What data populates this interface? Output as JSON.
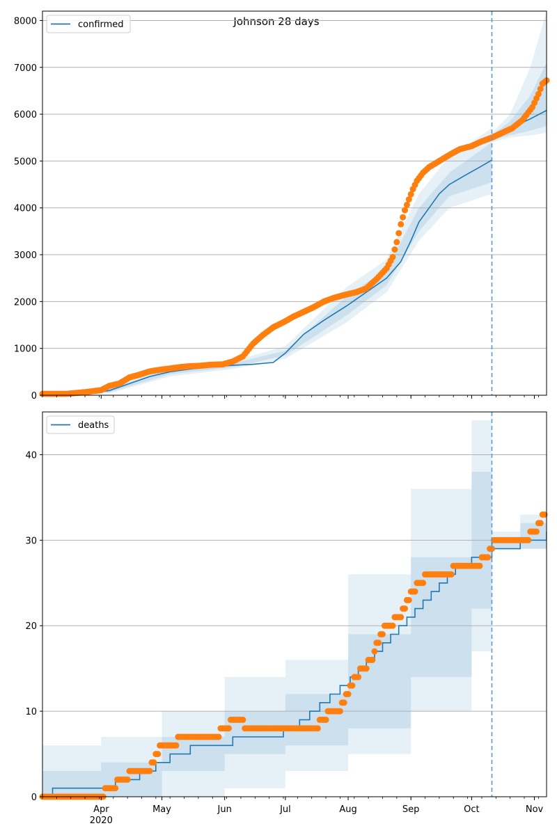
{
  "figure_title": "Johnson 28 days",
  "x_axis": {
    "date_range": [
      "2020-03-03",
      "2020-11-07"
    ],
    "tick_labels": [
      {
        "date": "2020-04-01",
        "label": "Apr"
      },
      {
        "date": "2020-05-01",
        "label": "May"
      },
      {
        "date": "2020-06-01",
        "label": "Jun"
      },
      {
        "date": "2020-07-01",
        "label": "Jul"
      },
      {
        "date": "2020-08-01",
        "label": "Aug"
      },
      {
        "date": "2020-09-01",
        "label": "Sep"
      },
      {
        "date": "2020-10-01",
        "label": "Oct"
      },
      {
        "date": "2020-11-01",
        "label": "Nov"
      }
    ],
    "year_label": "2020",
    "forecast_start_date": "2020-10-11"
  },
  "colors": {
    "model_line": "#1f77b4",
    "observed_points": "#ff7f0e",
    "band": "#1f77b4",
    "forecast_marker": "#5b9bd5",
    "grid": "#b0b0b0"
  },
  "chart_data": [
    {
      "type": "line",
      "legend": "confirmed",
      "legend_position": "upper-left",
      "ylim": [
        0,
        8200
      ],
      "y_ticks": [
        0,
        1000,
        2000,
        3000,
        4000,
        5000,
        6000,
        7000,
        8000
      ],
      "grid": "horizontal",
      "series": [
        {
          "name": "confirmed",
          "style": "line",
          "x": [
            "2020-03-03",
            "2020-03-15",
            "2020-03-25",
            "2020-04-05",
            "2020-04-15",
            "2020-04-25",
            "2020-05-05",
            "2020-05-15",
            "2020-05-25",
            "2020-06-05",
            "2020-06-15",
            "2020-06-25",
            "2020-07-01",
            "2020-07-10",
            "2020-07-20",
            "2020-07-31",
            "2020-08-10",
            "2020-08-20",
            "2020-08-27",
            "2020-09-01",
            "2020-09-05",
            "2020-09-10",
            "2020-09-15",
            "2020-09-20",
            "2020-09-28",
            "2020-10-05",
            "2020-10-11"
          ],
          "y": [
            0,
            10,
            40,
            100,
            250,
            400,
            500,
            560,
            600,
            640,
            660,
            700,
            900,
            1300,
            1600,
            1900,
            2200,
            2500,
            2850,
            3300,
            3700,
            4000,
            4300,
            4500,
            4700,
            4870,
            5020
          ]
        },
        {
          "name": "forecast",
          "style": "line",
          "x": [
            "2020-10-11",
            "2020-10-20",
            "2020-10-30",
            "2020-11-07"
          ],
          "y": [
            5500,
            5700,
            5900,
            6080
          ]
        },
        {
          "name": "observed",
          "style": "points",
          "x": [
            "2020-03-03",
            "2020-03-15",
            "2020-03-25",
            "2020-04-01",
            "2020-04-05",
            "2020-04-10",
            "2020-04-15",
            "2020-04-20",
            "2020-04-25",
            "2020-05-01",
            "2020-05-05",
            "2020-05-10",
            "2020-05-15",
            "2020-05-20",
            "2020-05-25",
            "2020-05-31",
            "2020-06-05",
            "2020-06-10",
            "2020-06-15",
            "2020-06-20",
            "2020-06-25",
            "2020-07-01",
            "2020-07-05",
            "2020-07-10",
            "2020-07-15",
            "2020-07-20",
            "2020-07-25",
            "2020-07-31",
            "2020-08-05",
            "2020-08-10",
            "2020-08-15",
            "2020-08-20",
            "2020-08-23",
            "2020-08-25",
            "2020-08-27",
            "2020-08-29",
            "2020-08-31",
            "2020-09-02",
            "2020-09-04",
            "2020-09-07",
            "2020-09-10",
            "2020-09-15",
            "2020-09-20",
            "2020-09-25",
            "2020-10-01",
            "2020-10-06",
            "2020-10-11",
            "2020-10-16",
            "2020-10-21",
            "2020-10-26",
            "2020-10-31",
            "2020-11-03",
            "2020-11-05",
            "2020-11-07"
          ],
          "y": [
            30,
            30,
            70,
            110,
            200,
            250,
            380,
            440,
            510,
            550,
            570,
            600,
            620,
            630,
            650,
            660,
            720,
            830,
            1100,
            1290,
            1450,
            1580,
            1680,
            1780,
            1880,
            2000,
            2080,
            2150,
            2200,
            2280,
            2480,
            2710,
            2950,
            3270,
            3650,
            3950,
            4180,
            4400,
            4580,
            4750,
            4870,
            5000,
            5130,
            5250,
            5320,
            5420,
            5500,
            5600,
            5700,
            5870,
            6150,
            6430,
            6650,
            6720
          ]
        }
      ],
      "bands": {
        "x": [
          "2020-03-03",
          "2020-04-05",
          "2020-05-05",
          "2020-06-05",
          "2020-07-01",
          "2020-07-31",
          "2020-08-20",
          "2020-09-05",
          "2020-09-20",
          "2020-10-11"
        ],
        "outer": {
          "low": [
            0,
            40,
            400,
            560,
            780,
            1550,
            2200,
            3300,
            4000,
            4300
          ],
          "high": [
            0,
            200,
            650,
            720,
            1050,
            2300,
            2900,
            4300,
            5100,
            5700
          ]
        },
        "inner": {
          "low": [
            0,
            60,
            450,
            600,
            850,
            1700,
            2350,
            3500,
            4250,
            4550
          ],
          "high": [
            0,
            140,
            560,
            680,
            950,
            2100,
            2700,
            4000,
            4750,
            5400
          ]
        }
      },
      "forecast_bands": {
        "x": [
          "2020-10-11",
          "2020-10-20",
          "2020-10-30",
          "2020-11-07"
        ],
        "outer": {
          "low": [
            5400,
            5500,
            5550,
            5600
          ],
          "high": [
            5600,
            6000,
            7000,
            8200
          ]
        },
        "inner": {
          "low": [
            5450,
            5550,
            5650,
            5750
          ],
          "high": [
            5550,
            5850,
            6400,
            7100
          ]
        }
      }
    },
    {
      "type": "line",
      "legend": "deaths",
      "legend_position": "upper-left",
      "ylim": [
        0,
        45
      ],
      "y_ticks": [
        0,
        10,
        20,
        30,
        40
      ],
      "grid": "horizontal",
      "series": [
        {
          "name": "deaths",
          "style": "step",
          "x": [
            "2020-03-03",
            "2020-03-08",
            "2020-03-20",
            "2020-04-08",
            "2020-04-20",
            "2020-04-28",
            "2020-05-05",
            "2020-05-15",
            "2020-05-25",
            "2020-06-05",
            "2020-06-30",
            "2020-07-08",
            "2020-07-13",
            "2020-07-18",
            "2020-07-23",
            "2020-07-28",
            "2020-08-02",
            "2020-08-06",
            "2020-08-10",
            "2020-08-14",
            "2020-08-18",
            "2020-08-22",
            "2020-08-26",
            "2020-08-30",
            "2020-09-03",
            "2020-09-07",
            "2020-09-11",
            "2020-09-15",
            "2020-09-19",
            "2020-09-23",
            "2020-10-01",
            "2020-10-11"
          ],
          "y": [
            0,
            1,
            1,
            2,
            3,
            4,
            5,
            6,
            6,
            7,
            8,
            9,
            10,
            11,
            12,
            13,
            14,
            15,
            16,
            17,
            18,
            19,
            20,
            21,
            22,
            23,
            24,
            25,
            26,
            27,
            28,
            30
          ]
        },
        {
          "name": "forecast",
          "style": "step",
          "x": [
            "2020-10-11",
            "2020-10-25",
            "2020-11-07"
          ],
          "y": [
            29,
            30,
            31
          ]
        },
        {
          "name": "observed",
          "style": "points",
          "x": [
            "2020-03-03",
            "2020-03-10",
            "2020-03-20",
            "2020-03-31",
            "2020-04-05",
            "2020-04-12",
            "2020-04-17",
            "2020-04-25",
            "2020-04-30",
            "2020-05-06",
            "2020-05-12",
            "2020-05-20",
            "2020-05-27",
            "2020-06-01",
            "2020-06-06",
            "2020-06-15",
            "2020-06-25",
            "2020-07-05",
            "2020-07-15",
            "2020-07-20",
            "2020-07-24",
            "2020-07-28",
            "2020-08-01",
            "2020-08-05",
            "2020-08-09",
            "2020-08-13",
            "2020-08-17",
            "2020-08-21",
            "2020-08-26",
            "2020-09-02",
            "2020-09-10",
            "2020-09-18",
            "2020-09-26",
            "2020-10-03",
            "2020-10-08",
            "2020-10-13",
            "2020-10-20",
            "2020-10-27",
            "2020-11-01",
            "2020-11-04",
            "2020-11-06"
          ],
          "y": [
            0,
            0,
            0,
            0,
            1,
            2,
            3,
            3,
            6,
            6,
            7,
            7,
            7,
            8,
            9,
            8,
            8,
            8,
            8,
            9,
            10,
            10,
            12,
            14,
            15,
            16,
            19,
            20,
            21,
            24,
            26,
            26,
            27,
            27,
            28,
            30,
            30,
            30,
            31,
            32,
            33
          ]
        }
      ],
      "bands": {
        "x": [
          "2020-03-03",
          "2020-04-01",
          "2020-05-01",
          "2020-06-01",
          "2020-07-01",
          "2020-08-01",
          "2020-09-01",
          "2020-10-01",
          "2020-10-11"
        ],
        "outer": {
          "low": [
            0,
            0,
            0,
            1,
            3,
            5,
            10,
            17,
            18
          ],
          "high": [
            6,
            7,
            10,
            14,
            16,
            26,
            36,
            44,
            45
          ]
        },
        "inner": {
          "low": [
            0,
            0,
            3,
            5,
            6,
            8,
            14,
            22,
            24
          ],
          "high": [
            3,
            4,
            7,
            10,
            12,
            19,
            28,
            38,
            40
          ]
        }
      },
      "forecast_bands": {
        "x": [
          "2020-10-11",
          "2020-10-25",
          "2020-11-07"
        ],
        "outer": {
          "low": [
            29,
            29,
            29
          ],
          "high": [
            31,
            33,
            39
          ]
        },
        "inner": {
          "low": [
            29,
            29,
            30
          ],
          "high": [
            30,
            32,
            35
          ]
        }
      }
    }
  ]
}
